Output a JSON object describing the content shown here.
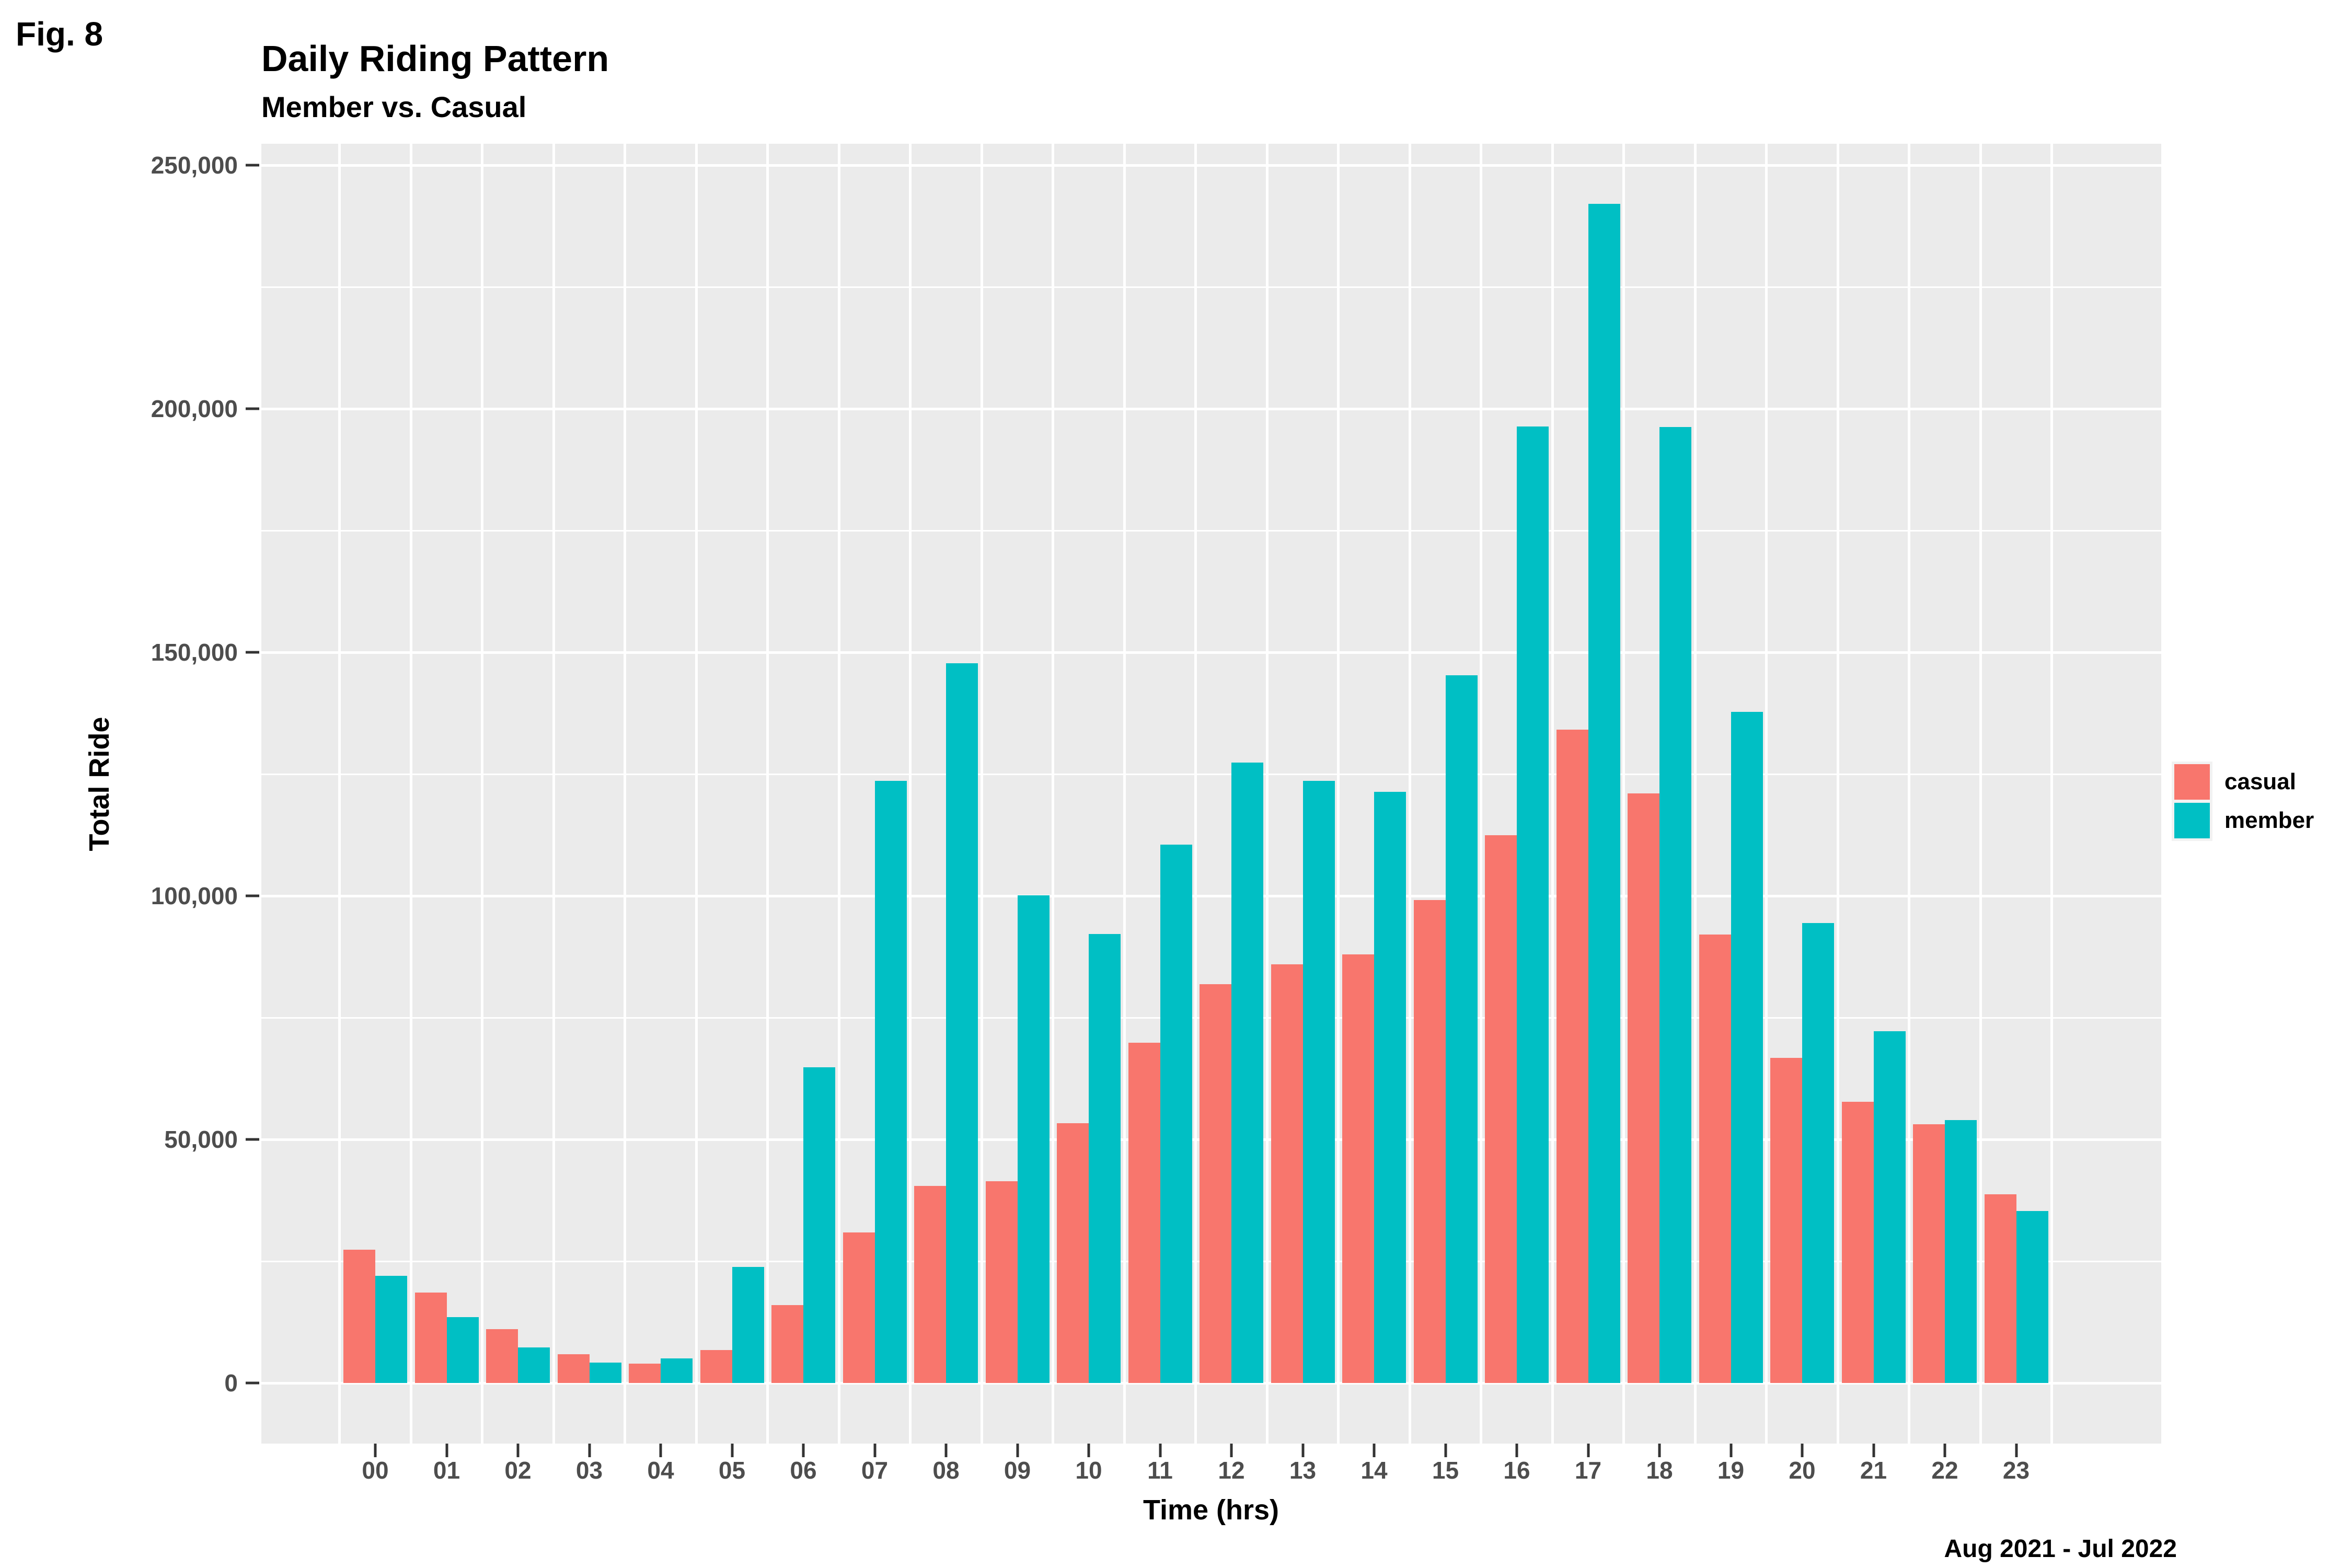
{
  "figure_label": "Fig. 8",
  "chart_data": {
    "type": "bar",
    "title": "Daily Riding Pattern",
    "subtitle": "Member vs. Casual",
    "caption": "Aug 2021 - Jul 2022",
    "xlabel": "Time (hrs)",
    "ylabel": "Total Ride",
    "categories": [
      "00",
      "01",
      "02",
      "03",
      "04",
      "05",
      "06",
      "07",
      "08",
      "09",
      "10",
      "11",
      "12",
      "13",
      "14",
      "15",
      "16",
      "17",
      "18",
      "19",
      "20",
      "21",
      "22",
      "23"
    ],
    "series": [
      {
        "name": "casual",
        "color": "#F8766D",
        "values": [
          27400,
          18600,
          11000,
          5900,
          4000,
          6800,
          16000,
          30900,
          40500,
          41400,
          53300,
          69800,
          81900,
          85900,
          88000,
          99100,
          112400,
          134100,
          121000,
          92100,
          66700,
          57700,
          53100,
          38700
        ]
      },
      {
        "name": "member",
        "color": "#00BFC4",
        "values": [
          22000,
          13500,
          7300,
          4200,
          5000,
          23800,
          64800,
          123600,
          147800,
          100100,
          92200,
          110500,
          127400,
          123600,
          121400,
          145300,
          196300,
          242100,
          196200,
          137800,
          94400,
          72200,
          54000,
          35300
        ]
      }
    ],
    "ylim": [
      0,
      250000
    ],
    "y_major_step": 50000,
    "y_minor_step": 25000,
    "y_ticks": [
      {
        "value": 0,
        "label": "0"
      },
      {
        "value": 50000,
        "label": "50,000"
      },
      {
        "value": 100000,
        "label": "100,000"
      },
      {
        "value": 150000,
        "label": "150,000"
      },
      {
        "value": 200000,
        "label": "200,000"
      },
      {
        "value": 250000,
        "label": "250,000"
      }
    ],
    "grid": true,
    "legend_position": "right",
    "panel_bg": "#EBEBEB",
    "grid_color": "#FFFFFF",
    "tick_label_color": "#4D4D4D"
  }
}
